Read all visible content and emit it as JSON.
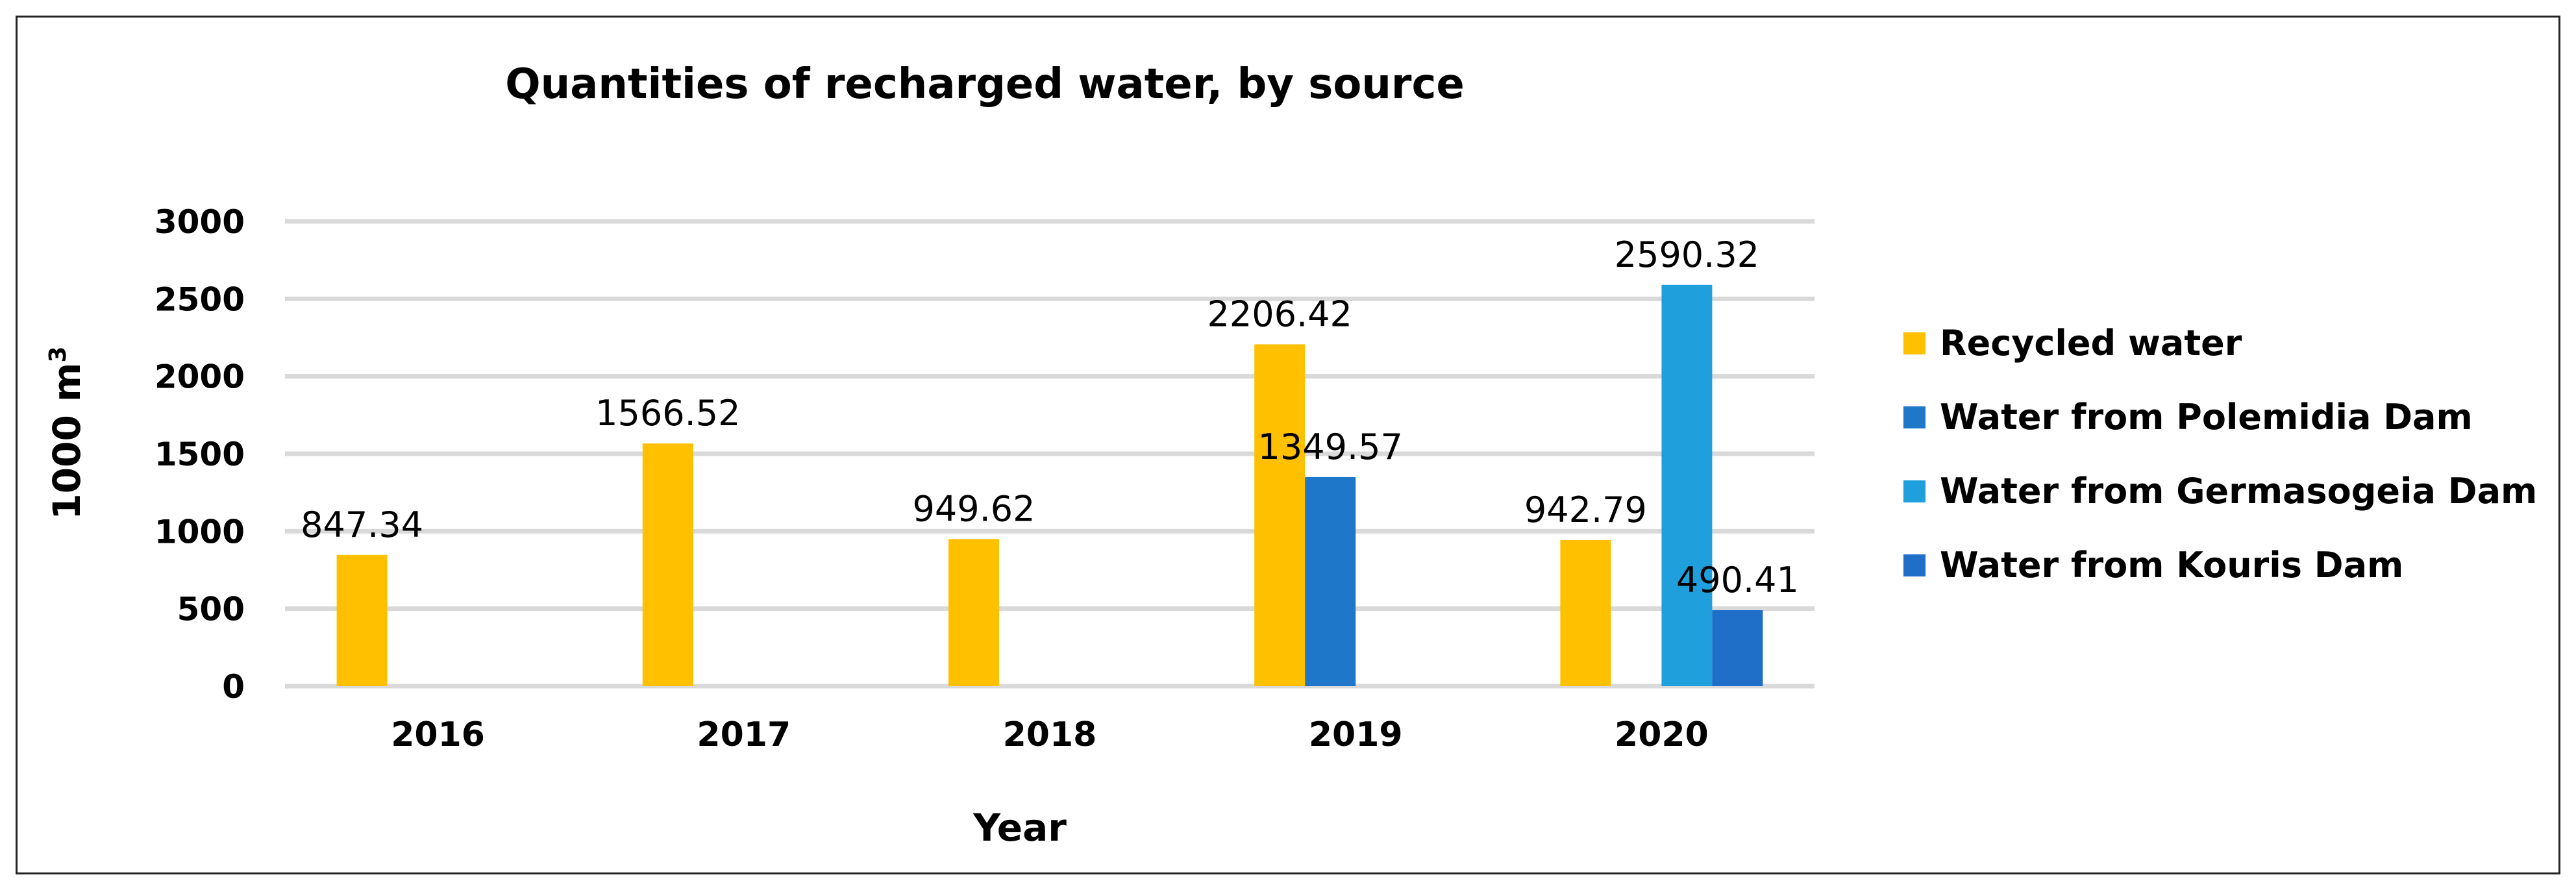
{
  "chart_data": {
    "type": "bar",
    "title": "Quantities of recharged water, by source",
    "xlabel": "Year",
    "ylabel": "1000 m",
    "ylabel_superscript": "3",
    "ylim": [
      0,
      3000
    ],
    "yticks": [
      "0",
      "500",
      "1000",
      "1500",
      "2000",
      "2500",
      "3000"
    ],
    "ytick_values": [
      0,
      500,
      1000,
      1500,
      2000,
      2500,
      3000
    ],
    "grid": true,
    "legend_position": "right",
    "categories": [
      "2016",
      "2017",
      "2018",
      "2019",
      "2020"
    ],
    "series": [
      {
        "name": "Recycled water",
        "color": "#ffc000",
        "values": [
          847.34,
          1566.52,
          949.62,
          2206.42,
          942.79
        ],
        "labels": [
          "847.34",
          "1566.52",
          "949.62",
          "2206.42",
          "942.79"
        ]
      },
      {
        "name": "Water from Polemidia Dam",
        "color": "#1f77c9",
        "values": [
          null,
          null,
          null,
          1349.57,
          null
        ],
        "labels": [
          "",
          "",
          "",
          "1349.57",
          ""
        ]
      },
      {
        "name": "Water from Germasogeia Dam",
        "color": "#1fa0dc",
        "values": [
          null,
          null,
          null,
          null,
          2590.32
        ],
        "labels": [
          "",
          "",
          "",
          "",
          "2590.32"
        ]
      },
      {
        "name": "Water from Kouris Dam",
        "color": "#1f6fc8",
        "values": [
          null,
          null,
          null,
          null,
          490.41
        ],
        "labels": [
          "",
          "",
          "",
          "",
          "490.41"
        ]
      }
    ]
  }
}
